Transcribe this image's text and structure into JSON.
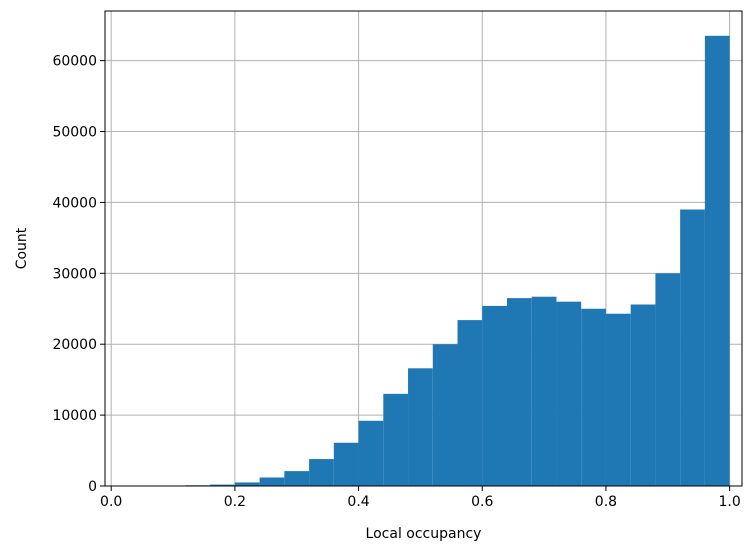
{
  "chart_data": {
    "type": "bar",
    "title": "",
    "xlabel": "Local occupancy",
    "ylabel": "Count",
    "xlim": [
      -0.01,
      1.02
    ],
    "ylim": [
      0,
      67000
    ],
    "xticks": [
      0.0,
      0.2,
      0.4,
      0.6,
      0.8,
      1.0
    ],
    "xtick_labels": [
      "0.0",
      "0.2",
      "0.4",
      "0.6",
      "0.8",
      "1.0"
    ],
    "yticks": [
      0,
      10000,
      20000,
      30000,
      40000,
      50000,
      60000
    ],
    "ytick_labels": [
      "0",
      "10000",
      "20000",
      "30000",
      "40000",
      "50000",
      "60000"
    ],
    "grid": true,
    "bar_color": "#1f77b4",
    "bin_edges": [
      0.12,
      0.16,
      0.2,
      0.24,
      0.28,
      0.32,
      0.36,
      0.4,
      0.44,
      0.48,
      0.52,
      0.56,
      0.6,
      0.64,
      0.68,
      0.72,
      0.76,
      0.8,
      0.84,
      0.88,
      0.92,
      0.96,
      1.0
    ],
    "values": [
      100,
      200,
      500,
      1200,
      2100,
      3800,
      6100,
      9200,
      13000,
      16600,
      20000,
      23400,
      25400,
      26500,
      26700,
      26000,
      25000,
      24300,
      25600,
      30000,
      39000,
      63500
    ]
  }
}
